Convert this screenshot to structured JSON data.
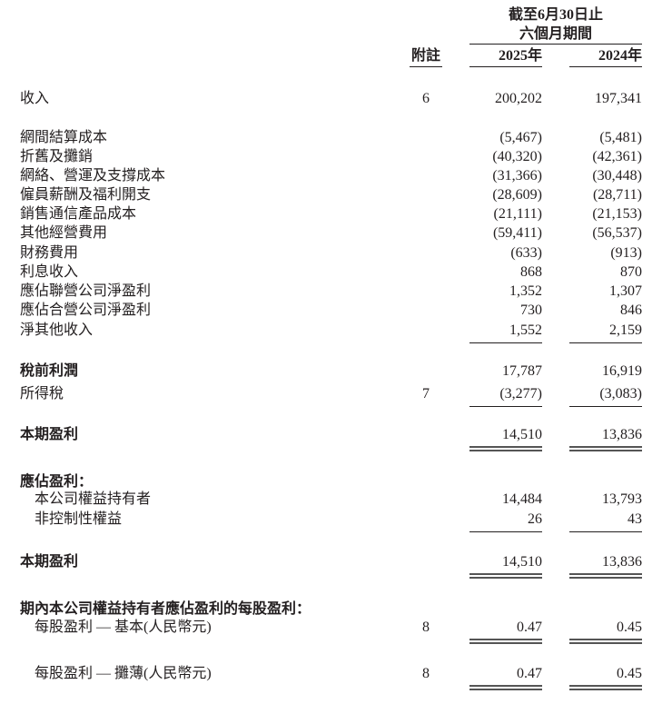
{
  "header": {
    "period_line1": "截至6月30日止",
    "period_line2": "六個月期間",
    "note_header": "附註",
    "year_2025": "2025年",
    "year_2024": "2024年"
  },
  "rows": [
    {
      "label": "收入",
      "note": "6",
      "v2025": "200,202",
      "v2024": "197,341"
    },
    {
      "label": "網間結算成本",
      "note": "",
      "v2025": "(5,467)",
      "v2024": "(5,481)"
    },
    {
      "label": "折舊及攤銷",
      "note": "",
      "v2025": "(40,320)",
      "v2024": "(42,361)"
    },
    {
      "label": "網絡、營運及支撐成本",
      "note": "",
      "v2025": "(31,366)",
      "v2024": "(30,448)"
    },
    {
      "label": "僱員薪酬及福利開支",
      "note": "",
      "v2025": "(28,609)",
      "v2024": "(28,711)"
    },
    {
      "label": "銷售通信產品成本",
      "note": "",
      "v2025": "(21,111)",
      "v2024": "(21,153)"
    },
    {
      "label": "其他經營費用",
      "note": "",
      "v2025": "(59,411)",
      "v2024": "(56,537)"
    },
    {
      "label": "財務費用",
      "note": "",
      "v2025": "(633)",
      "v2024": "(913)"
    },
    {
      "label": "利息收入",
      "note": "",
      "v2025": "868",
      "v2024": "870"
    },
    {
      "label": "應佔聯營公司淨盈利",
      "note": "",
      "v2025": "1,352",
      "v2024": "1,307"
    },
    {
      "label": "應佔合營公司淨盈利",
      "note": "",
      "v2025": "730",
      "v2024": "846"
    },
    {
      "label": "淨其他收入",
      "note": "",
      "v2025": "1,552",
      "v2024": "2,159"
    },
    {
      "label": "稅前利潤",
      "note": "",
      "v2025": "17,787",
      "v2024": "16,919",
      "bold": true
    },
    {
      "label": "所得稅",
      "note": "7",
      "v2025": "(3,277)",
      "v2024": "(3,083)"
    },
    {
      "label": "本期盈利",
      "note": "",
      "v2025": "14,510",
      "v2024": "13,836",
      "bold": true
    },
    {
      "label": "應佔盈利：",
      "note": "",
      "v2025": "",
      "v2024": "",
      "bold": true
    },
    {
      "label": "本公司權益持有者",
      "note": "",
      "v2025": "14,484",
      "v2024": "13,793",
      "indent": true
    },
    {
      "label": "非控制性權益",
      "note": "",
      "v2025": "26",
      "v2024": "43",
      "indent": true
    },
    {
      "label": "本期盈利",
      "note": "",
      "v2025": "14,510",
      "v2024": "13,836",
      "bold": true
    },
    {
      "label": "期內本公司權益持有者應佔盈利的每股盈利：",
      "note": "",
      "v2025": "",
      "v2024": "",
      "bold": true
    },
    {
      "label": "每股盈利 — 基本(人民幣元)",
      "note": "8",
      "v2025": "0.47",
      "v2024": "0.45",
      "indent": true
    },
    {
      "label": "每股盈利 — 攤薄(人民幣元)",
      "note": "8",
      "v2025": "0.47",
      "v2024": "0.45",
      "indent": true
    }
  ]
}
